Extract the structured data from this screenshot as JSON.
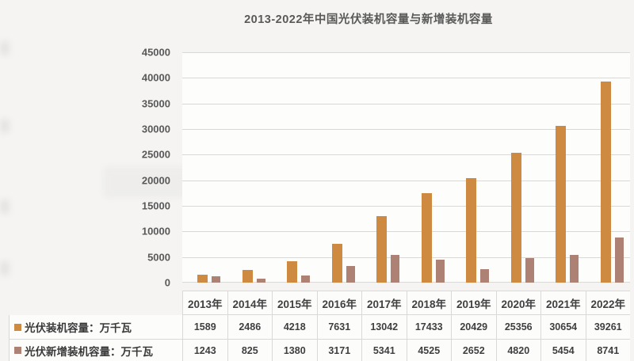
{
  "chart_data": {
    "type": "bar",
    "title": "2013-2022年中国光伏装机容量与新增装机容量",
    "categories": [
      "2013年",
      "2014年",
      "2015年",
      "2016年",
      "2017年",
      "2018年",
      "2019年",
      "2020年",
      "2021年",
      "2022年"
    ],
    "series": [
      {
        "name": "光伏装机容量：万千瓦",
        "color": "#ce8a40",
        "values": [
          1589,
          2486,
          4218,
          7631,
          13042,
          17433,
          20429,
          25356,
          30654,
          39261
        ]
      },
      {
        "name": "光伏新增装机容量：万千瓦",
        "color": "#ad8173",
        "values": [
          1243,
          825,
          1380,
          3171,
          5341,
          4525,
          2652,
          4820,
          5454,
          8741
        ]
      }
    ],
    "xlabel": "",
    "ylabel": "",
    "ylim": [
      0,
      45000
    ],
    "y_ticks": [
      0,
      5000,
      10000,
      15000,
      20000,
      25000,
      30000,
      35000,
      40000,
      45000
    ],
    "grid": true,
    "legend_position": "table-left",
    "colors": {
      "grid": "#d9d9d8",
      "text": "#595959",
      "table_text": "#3f3f3f"
    }
  }
}
